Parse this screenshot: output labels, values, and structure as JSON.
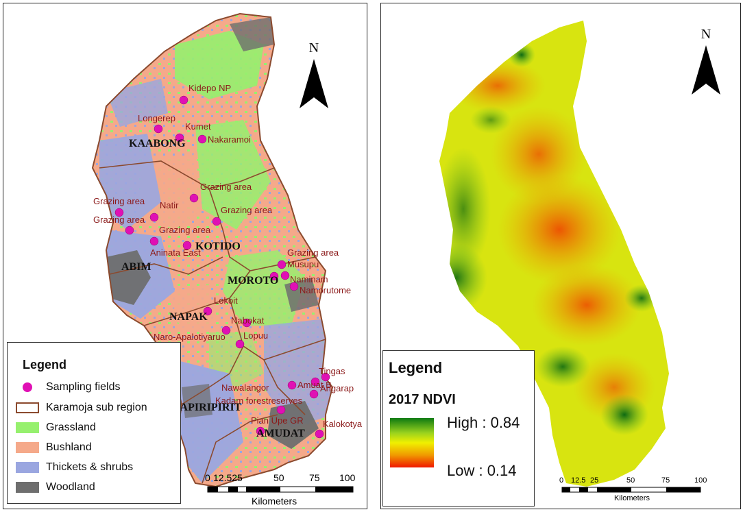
{
  "left_map": {
    "north_label": "N",
    "district_labels": {
      "kaabong": "KAABONG",
      "kotido": "KOTIDO",
      "abim": "ABIM",
      "moroto": "MOROTO",
      "napak": "NAPAK",
      "nakapiripirit": "NAKAPIRIPIRIT",
      "amudat": "AMUDAT"
    },
    "site_labels": [
      {
        "id": "kidepo",
        "text": "Kidepo NP"
      },
      {
        "id": "longerep",
        "text": "Longerep"
      },
      {
        "id": "kumet",
        "text": "Kumet"
      },
      {
        "id": "nakaramoi",
        "text": "Nakaramoi"
      },
      {
        "id": "grazing1",
        "text": "Grazing area"
      },
      {
        "id": "grazing2",
        "text": "Grazing area"
      },
      {
        "id": "natir",
        "text": "Natir"
      },
      {
        "id": "grazing3",
        "text": "Grazing area"
      },
      {
        "id": "grazing4",
        "text": "Grazing area"
      },
      {
        "id": "grazing5",
        "text": "Grazing area"
      },
      {
        "id": "aninata",
        "text": "Aninata East"
      },
      {
        "id": "grazing6",
        "text": "Grazing area"
      },
      {
        "id": "musupu",
        "text": "Musupu"
      },
      {
        "id": "naminam",
        "text": "Naminam"
      },
      {
        "id": "namorutome",
        "text": "Namorutome"
      },
      {
        "id": "lokoit",
        "text": "Lokoit"
      },
      {
        "id": "nabokat",
        "text": "Nabokat"
      },
      {
        "id": "naro",
        "text": "Naro-Apalotiyaruo"
      },
      {
        "id": "lopuu",
        "text": "Lopuu"
      },
      {
        "id": "tingas",
        "text": "Tingas"
      },
      {
        "id": "nawalangor",
        "text": "Nawalangor"
      },
      {
        "id": "amuat",
        "text": "Amuat B"
      },
      {
        "id": "angarap",
        "text": "Angarap"
      },
      {
        "id": "kadam",
        "text": "Kadam forestreserves"
      },
      {
        "id": "pian",
        "text": "Pian Upe GR"
      },
      {
        "id": "kalokotya",
        "text": "Kalokotya"
      }
    ],
    "legend": {
      "title": "Legend",
      "items": [
        {
          "label": "Sampling fields",
          "color": "#e010b4",
          "kind": "dot"
        },
        {
          "label": "Karamoja sub region",
          "color": "#8b4a2e",
          "kind": "outline"
        },
        {
          "label": "Grassland",
          "color": "#96f06e",
          "kind": "fill"
        },
        {
          "label": "Bushland",
          "color": "#f5a98a",
          "kind": "fill"
        },
        {
          "label": "Thickets & shrubs",
          "color": "#9aa6e0",
          "kind": "fill"
        },
        {
          "label": "Woodland",
          "color": "#6e6e6e",
          "kind": "fill"
        }
      ]
    },
    "scale": {
      "ticks": [
        "0",
        "12.525",
        "50",
        "75",
        "100"
      ],
      "unit": "Kilometers"
    }
  },
  "right_map": {
    "north_label": "N",
    "legend": {
      "title": "Legend",
      "layer": "2017 NDVI",
      "high_label": "High : 0.84",
      "low_label": "Low : 0.14",
      "high_color": "#0e7a12",
      "mid_color": "#f0f000",
      "low_color": "#f01800"
    },
    "scale": {
      "ticks": [
        "0",
        "12.5",
        "25",
        "50",
        "75",
        "100"
      ],
      "unit": "Kilometers"
    }
  }
}
